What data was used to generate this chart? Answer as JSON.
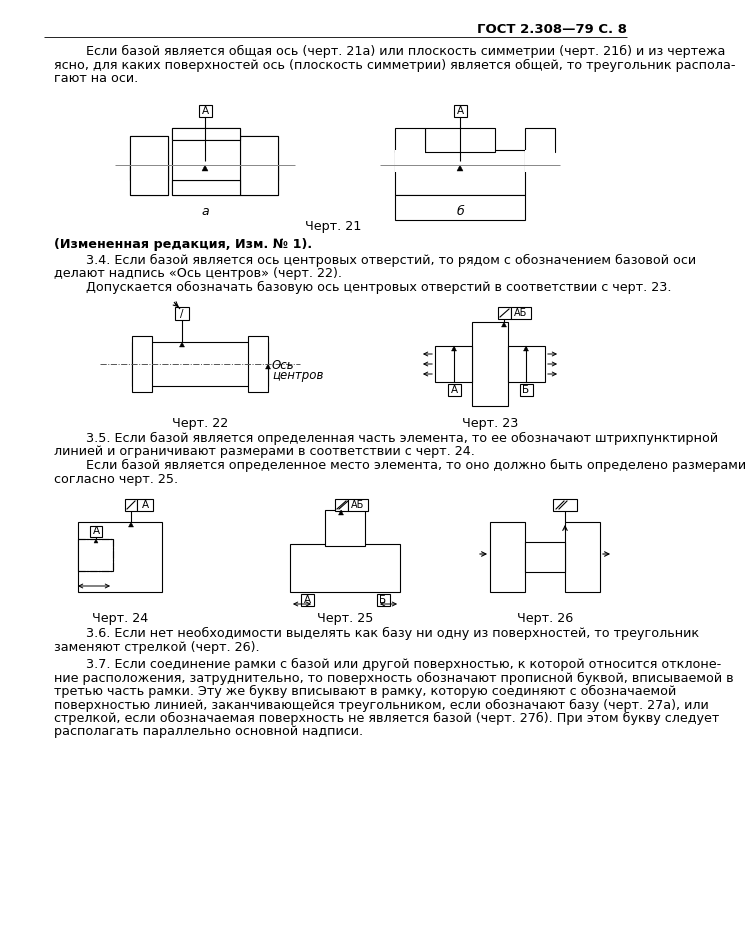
{
  "title_right": "ГОСТ 2.308—79 С. 8",
  "bg_color": "#ffffff",
  "text_color": "#000000",
  "body_fs": 9.2,
  "header_fs": 9.5,
  "caption_fs": 9.2,
  "bold_fs": 9.2,
  "para1_lines": [
    "        Если базой является общая ось (черт. 21а) или плоскость симметрии (черт. 21б) и из чертежа",
    "ясно, для каких поверхностей ось (плоскость симметрии) является общей, то треугольник распола-",
    "гают на оси."
  ],
  "changed_edition": "(Измененная редакция, Изм. № 1).",
  "p34_lines": [
    "        3.4. Если базой является ось центровых отверстий, то рядом с обозначением базовой оси",
    "делают надпись «Ось центров» (черт. 22).",
    "        Допускается обозначать базовую ось центровых отверстий в соответствии с черт. 23."
  ],
  "p35_lines": [
    "        3.5. Если базой является определенная часть элемента, то ее обозначают штрихпунктирной",
    "линией и ограничивают размерами в соответствии с черт. 24.",
    "        Если базой является определенное место элемента, то оно должно быть определено размерами",
    "согласно черт. 25."
  ],
  "p36_lines": [
    "        3.6. Если нет необходимости выделять как базу ни одну из поверхностей, то треугольник",
    "заменяют стрелкой (черт. 26)."
  ],
  "p37_lines": [
    "        3.7. Если соединение рамки с базой или другой поверхностью, к которой относится отклоне-",
    "ние расположения, затруднительно, то поверхность обозначают прописной буквой, вписываемой в",
    "третью часть рамки. Эту же букву вписывают в рамку, которую соединяют с обозначаемой",
    "поверхностью линией, заканчивающейся треугольником, если обозначают базу (черт. 27а), или",
    "стрелкой, если обозначаемая поверхность не является базой (черт. 27б). При этом букву следует",
    "располагать параллельно основной надписи."
  ],
  "captions": {
    "chert21": "Черт. 21",
    "chert22": "Черт. 22",
    "chert23": "Черт. 23",
    "chert24": "Черт. 24",
    "chert25": "Черт. 25",
    "chert26": "Черт. 26"
  }
}
